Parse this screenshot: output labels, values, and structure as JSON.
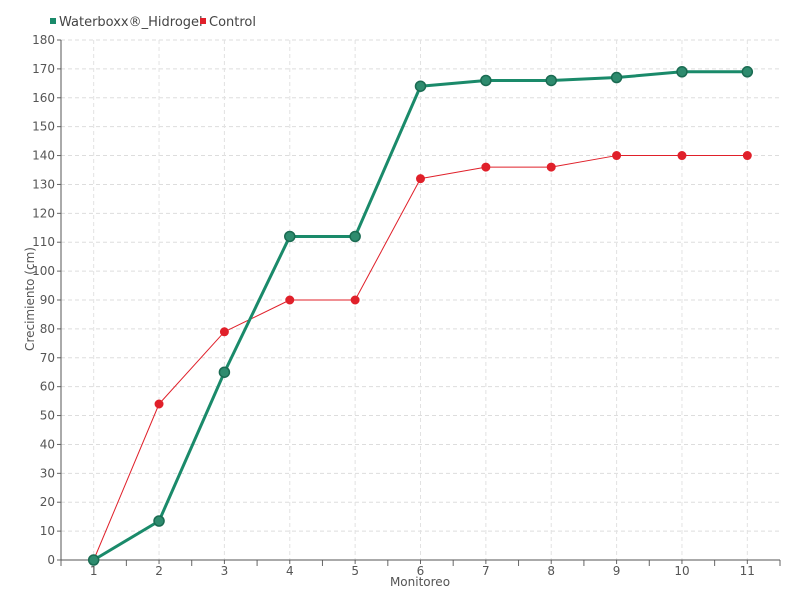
{
  "chart_data": {
    "type": "line",
    "xlabel": "Monitoreo",
    "ylabel": "Crecimiento (cm)",
    "categories": [
      "1",
      "2",
      "3",
      "4",
      "5",
      "6",
      "7",
      "8",
      "9",
      "10",
      "11"
    ],
    "ylim": [
      0,
      180
    ],
    "yticks": [
      0,
      10,
      20,
      30,
      40,
      50,
      60,
      70,
      80,
      90,
      100,
      110,
      120,
      130,
      140,
      150,
      160,
      170,
      180
    ],
    "grid": true,
    "legend_position": "top-left",
    "series": [
      {
        "name": "Waterboxx®_Hidrogel",
        "color": "#1a8a6a",
        "values": [
          0,
          13.5,
          65,
          112,
          112,
          164,
          166,
          166,
          167,
          169,
          169
        ]
      },
      {
        "name": "Control",
        "color": "#e0202a",
        "values": [
          0,
          54,
          79,
          90,
          90,
          132,
          136,
          136,
          140,
          140,
          140
        ]
      }
    ]
  }
}
